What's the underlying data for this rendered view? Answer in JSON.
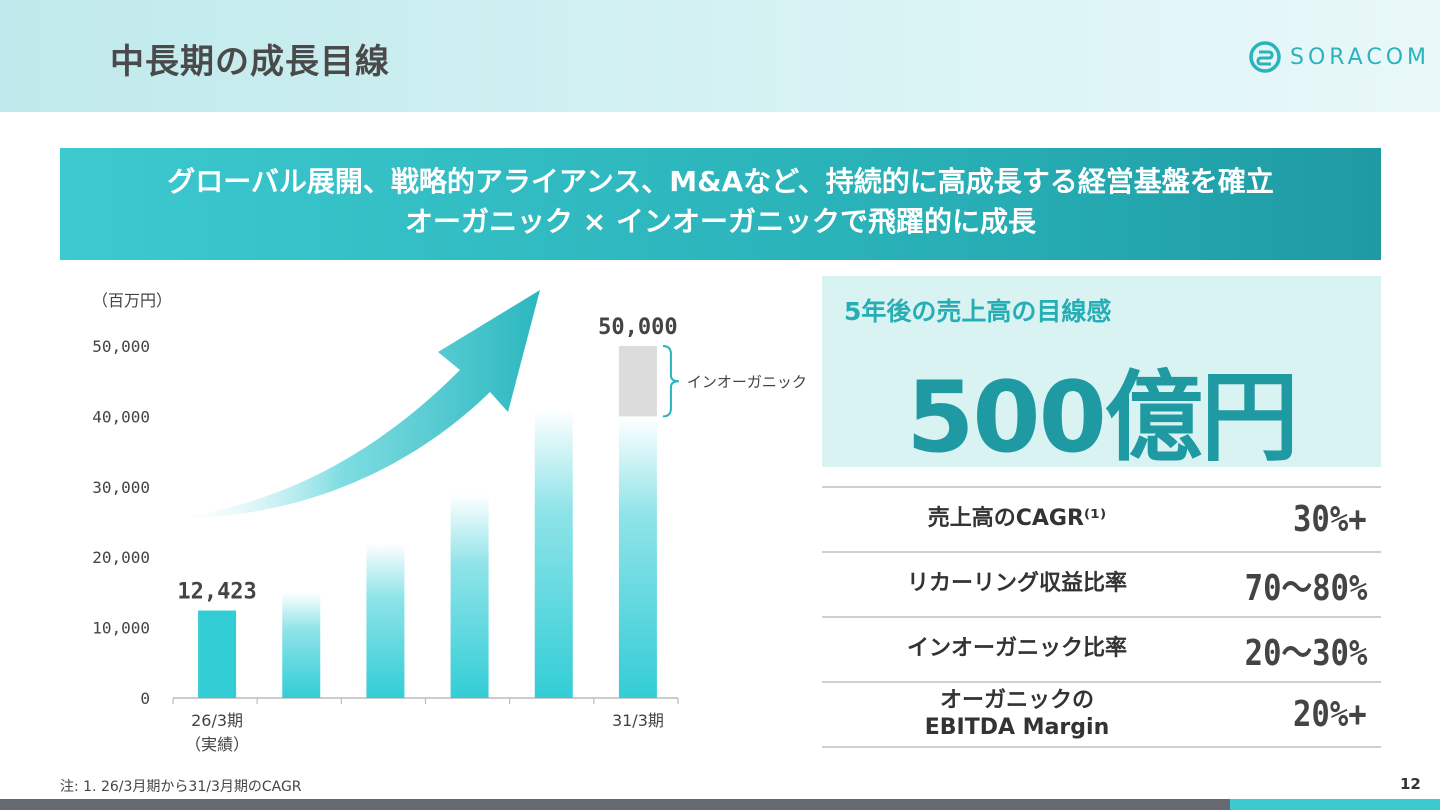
{
  "header": {
    "title": "中長期の成長目線",
    "logo_text": "SORACOM"
  },
  "banner": {
    "line1": "グローバル展開、戦略的アライアンス、M&Aなど、持続的に高成長する経営基盤を確立",
    "line2": "オーガニック × インオーガニックで飛躍的に成長"
  },
  "target": {
    "label": "5年後の売上高の目線感",
    "value": "500億円"
  },
  "metrics": [
    {
      "label": "売上高のCAGR⁽¹⁾",
      "value": "30%+"
    },
    {
      "label": "リカーリング収益比率",
      "value": "70～80%"
    },
    {
      "label": "インオーガニック比率",
      "value": "20～30%"
    },
    {
      "label_line1": "オーガニックの",
      "label_line2": "EBITDA Margin",
      "value": "20%+"
    }
  ],
  "footnote": "注: 1.  26/3月期から31/3月期のCAGR",
  "page_number": "12",
  "colors": {
    "accent": "#33cdd6",
    "accent_dark": "#1f9aa3",
    "inorganic_gray": "#dcdcdc"
  },
  "chart_data": {
    "type": "bar",
    "unit_label": "（百万円）",
    "categories": [
      "26/3期",
      "",
      "",
      "",
      "",
      "31/3期"
    ],
    "category_sublabels": [
      "（実績）",
      "",
      "",
      "",
      "",
      ""
    ],
    "y_ticks": [
      "0",
      "10,000",
      "20,000",
      "30,000",
      "40,000",
      "50,000"
    ],
    "ylim": [
      0,
      50000
    ],
    "series": [
      {
        "values": [
          12423,
          15000,
          22000,
          29000,
          41000,
          40000
        ]
      },
      {
        "name": "インオーガニック",
        "values": [
          0,
          0,
          0,
          0,
          0,
          10000
        ]
      }
    ],
    "data_labels": [
      {
        "index": 0,
        "text": "12,423"
      },
      {
        "index": 5,
        "text": "50,000"
      }
    ],
    "bracket_label": "インオーガニック",
    "grid": false
  }
}
